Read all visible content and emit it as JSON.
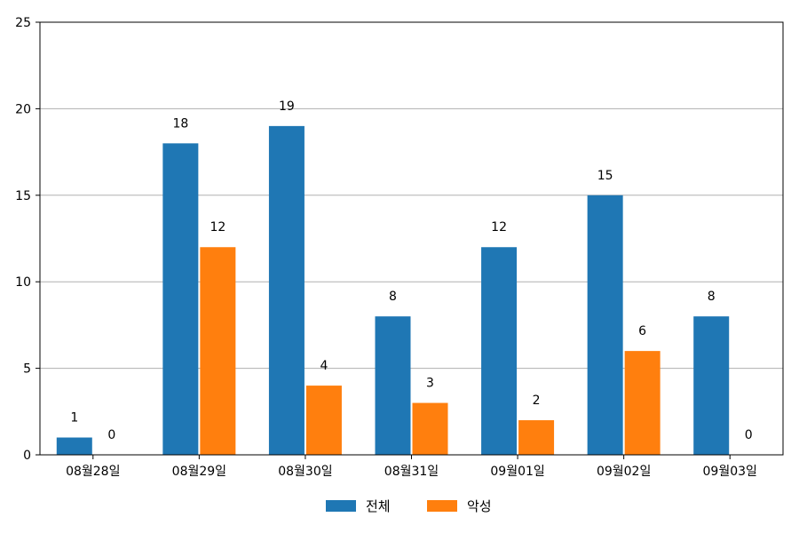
{
  "chart_data": {
    "type": "bar",
    "categories": [
      "08월28일",
      "08월29일",
      "08월30일",
      "08월31일",
      "09월01일",
      "09월02일",
      "09월03일"
    ],
    "series": [
      {
        "name": "전체",
        "values": [
          1,
          18,
          19,
          8,
          12,
          15,
          8
        ],
        "color": "#1f77b4"
      },
      {
        "name": "악성",
        "values": [
          0,
          12,
          4,
          3,
          2,
          6,
          0
        ],
        "color": "#ff7f0e"
      }
    ],
    "title": "",
    "xlabel": "",
    "ylabel": "",
    "ylim": [
      0,
      25
    ],
    "yticks": [
      0,
      5,
      10,
      15,
      20,
      25
    ],
    "grid": "horizontal",
    "legend_position": "bottom-center",
    "data_labels": true
  }
}
